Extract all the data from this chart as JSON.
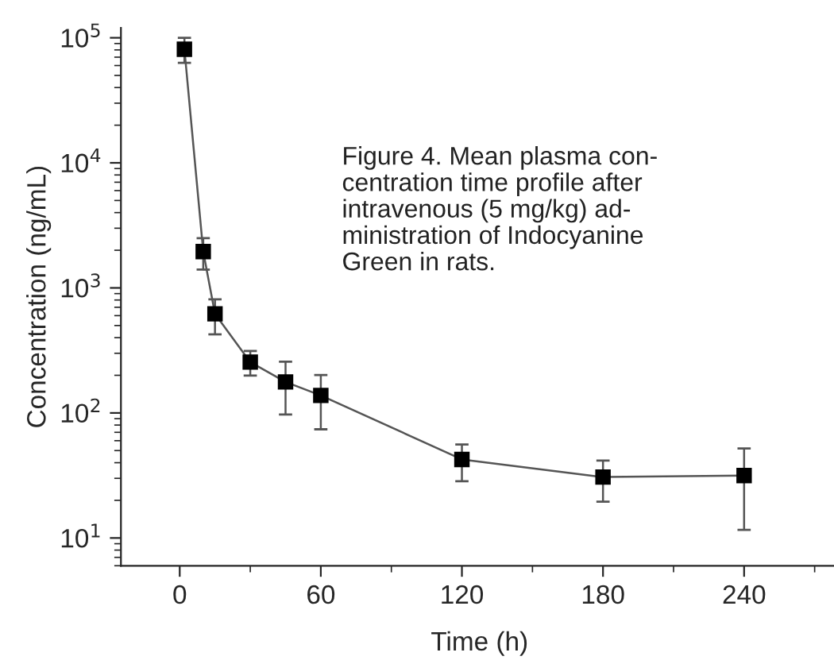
{
  "chart_data": {
    "type": "line",
    "xlabel": "Time (h)",
    "ylabel": "Concentration (ng/mL)",
    "annotations": [
      "Figure 4. Mean plasma con-\ncentration time profile after\nintravenous (5 mg/kg) ad-\nministration of Indocyanine\nGreen in rats."
    ],
    "x": [
      2,
      10,
      15,
      30,
      45,
      60,
      120,
      180,
      240
    ],
    "series": [
      {
        "color": "#000000",
        "values": [
          81000,
          1950,
          620,
          255,
          177,
          138,
          42.5,
          30.7,
          31.6
        ],
        "errors": [
          [
            63000,
            100000
          ],
          [
            1400,
            2500
          ],
          [
            425,
            810
          ],
          [
            199,
            313
          ],
          [
            97,
            257
          ],
          [
            74,
            201
          ],
          [
            28.4,
            56
          ],
          [
            19.5,
            41.6
          ],
          [
            11.6,
            52
          ]
        ]
      }
    ],
    "log": "y",
    "xlim": [
      -25,
      280
    ],
    "ylim": [
      6,
      120000
    ],
    "xticks": [
      0,
      60,
      120,
      180,
      240
    ],
    "yticks": [
      {
        "value": 10,
        "label": "10$^{1}$"
      },
      {
        "value": 100,
        "label": "10$^{2}$"
      },
      {
        "value": 1000,
        "label": "10$^{3}$"
      },
      {
        "value": 10000,
        "label": "10$^{4}$"
      },
      {
        "value": 100000,
        "label": "10$^{5}$"
      }
    ],
    "marker": "square",
    "line_style": "solid",
    "grid": false,
    "legend": false
  }
}
